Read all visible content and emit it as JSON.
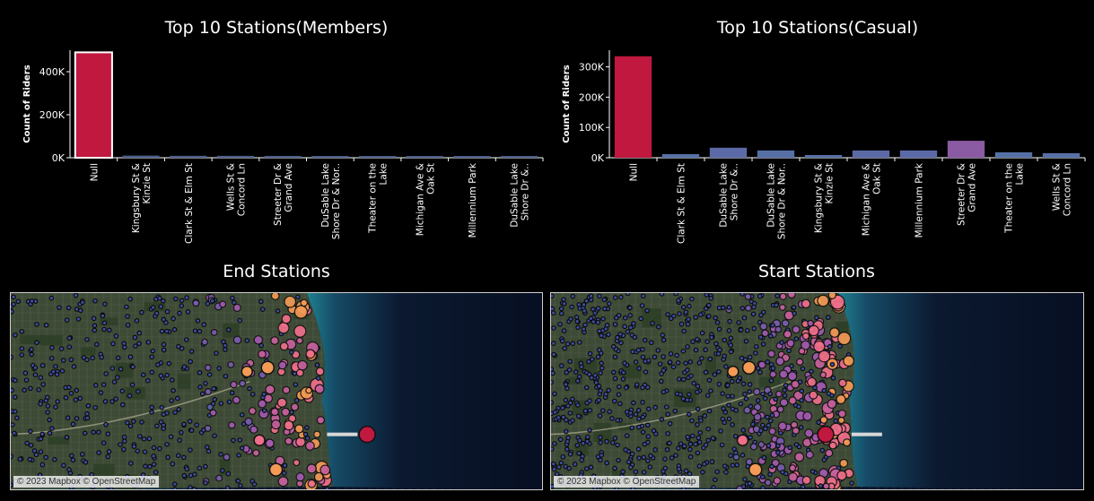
{
  "chart_data": [
    {
      "type": "bar",
      "title": "Top 10 Stations(Members)",
      "ylabel": "Count of Riders",
      "yticks": [
        "0K",
        "200K",
        "400K"
      ],
      "ytick_values": [
        0,
        200000,
        400000
      ],
      "ylim": [
        0,
        500000
      ],
      "categories": [
        "Null",
        "Kingsbury St & Kinzie St",
        "Clark St & Elm St",
        "Wells St & Concord Ln",
        "Streeter Dr & Grand Ave",
        "DuSable Lake Shore Dr & Nor..",
        "Theater on the Lake",
        "Michigan Ave & Oak St",
        "Millennium Park",
        "DuSable Lake Shore Dr &.."
      ],
      "category_lines": [
        [
          "Null"
        ],
        [
          "Kingsbury St &",
          "Kinzie St"
        ],
        [
          "Clark St & Elm St"
        ],
        [
          "Wells St &",
          "Concord Ln"
        ],
        [
          "Streeter Dr &",
          "Grand Ave"
        ],
        [
          "DuSable Lake",
          "Shore Dr & Nor.."
        ],
        [
          "Theater on the",
          "Lake"
        ],
        [
          "Michigan Ave &",
          "Oak St"
        ],
        [
          "Millennium Park"
        ],
        [
          "DuSable Lake",
          "Shore Dr &.."
        ]
      ],
      "values": [
        490000,
        10000,
        9000,
        8800,
        8500,
        8000,
        7600,
        7200,
        6900,
        6700
      ],
      "bar_colors": [
        "#c0183f",
        "#4b5f8c",
        "#4b5f8c",
        "#4b5f8c",
        "#4b5f8c",
        "#4b5f8c",
        "#4b5f8c",
        "#4b5f8c",
        "#4b5f8c",
        "#4b5f8c"
      ],
      "highlight_index": 0
    },
    {
      "type": "bar",
      "title": "Top 10 Stations(Casual)",
      "ylabel": "Count of Riders",
      "yticks": [
        "0K",
        "100K",
        "200K",
        "300K"
      ],
      "ytick_values": [
        0,
        100000,
        200000,
        300000
      ],
      "ylim": [
        0,
        355000
      ],
      "categories": [
        "Null",
        "Clark St & Elm St",
        "DuSable Lake Shore Dr &..",
        "DuSable Lake Shore Dr & Nor..",
        "Kingsbury St & Kinzie St",
        "Michigan Ave & Oak St",
        "Millennium Park",
        "Streeter Dr & Grand Ave",
        "Theater on the Lake",
        "Wells St & Concord Ln"
      ],
      "category_lines": [
        [
          "Null"
        ],
        [
          "Clark St & Elm St"
        ],
        [
          "DuSable Lake",
          "Shore Dr &.."
        ],
        [
          "DuSable Lake",
          "Shore Dr & Nor.."
        ],
        [
          "Kingsbury St &",
          "Kinzie St"
        ],
        [
          "Michigan Ave &",
          "Oak St"
        ],
        [
          "Millennium Park"
        ],
        [
          "Streeter Dr &",
          "Grand Ave"
        ],
        [
          "Theater on the",
          "Lake"
        ],
        [
          "Wells St &",
          "Concord Ln"
        ]
      ],
      "values": [
        335000,
        12000,
        33000,
        24000,
        9000,
        24000,
        24000,
        56000,
        18000,
        15000
      ],
      "bar_colors": [
        "#c0183f",
        "#5670a6",
        "#5b6aa6",
        "#5670a6",
        "#5670a6",
        "#5b6aa6",
        "#5b6aa6",
        "#8a5aa2",
        "#5670a6",
        "#5670a6"
      ],
      "highlight_index": -1
    }
  ],
  "maps": {
    "end": {
      "title": "End Stations",
      "attribution": "© 2023 Mapbox © OpenStreetMap"
    },
    "start": {
      "title": "Start Stations",
      "attribution": "© 2023 Mapbox © OpenStreetMap"
    }
  },
  "colors": {
    "background": "#000000",
    "water": "#0b1930",
    "shore_water": "#1f8190",
    "land": "#3d4a36",
    "axis": "#ffffff"
  },
  "legend": []
}
